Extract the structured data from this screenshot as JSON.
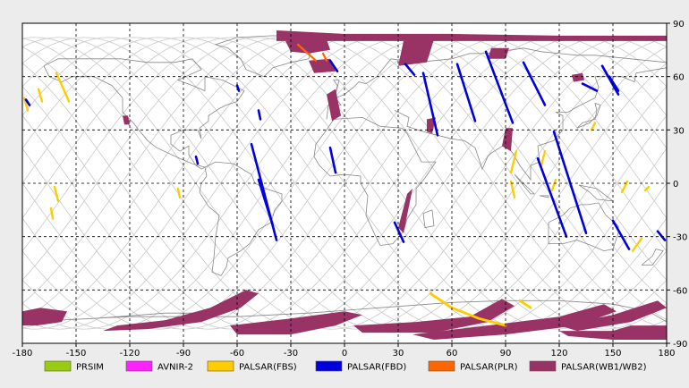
{
  "x_ticks": [
    "-180",
    "-150",
    "-120",
    "-90",
    "-60",
    "-30",
    "0",
    "30",
    "60",
    "90",
    "120",
    "150",
    "180"
  ],
  "y_ticks": [
    "90",
    "60",
    "30",
    "0",
    "-30",
    "-60",
    "-90"
  ],
  "colors": {
    "PRSIM": "#99cc11",
    "AVNIR-2": "#ff22ff",
    "PALSAR(FBS)": "#ffcc00",
    "PALSAR(FBD)": "#0000dd",
    "PALSAR(PLR)": "#ff6600",
    "PALSAR(WB1/WB2)": "#993366",
    "coast": "#888888",
    "orbit": "#c8c8c8",
    "grid": "#000000",
    "background": "#ececec",
    "map": "#ffffff"
  },
  "legend": [
    {
      "label": "PRSIM",
      "color": "#99cc11"
    },
    {
      "label": "AVNIR-2",
      "color": "#ff22ff"
    },
    {
      "label": "PALSAR(FBS)",
      "color": "#ffcc00"
    },
    {
      "label": "PALSAR(FBD)",
      "color": "#0000dd"
    },
    {
      "label": "PALSAR(PLR)",
      "color": "#ff6600"
    },
    {
      "label": "PALSAR(WB1/WB2)",
      "color": "#993366"
    }
  ],
  "map": {
    "lon_range": [
      -180,
      180
    ],
    "lat_range": [
      -90,
      90
    ],
    "graticule_step": 30,
    "orbit_tracks": 13,
    "orbit_inclination_deg": 82
  },
  "coverage": {
    "PALSAR(FBD)": [
      [
        [
          -52,
          22
        ],
        [
          -38,
          -32
        ]
      ],
      [
        [
          -48,
          2
        ],
        [
          -40,
          -24
        ]
      ],
      [
        [
          -83,
          15
        ],
        [
          -82,
          11
        ]
      ],
      [
        [
          -60,
          55
        ],
        [
          -59,
          52
        ]
      ],
      [
        [
          -48,
          41
        ],
        [
          -47,
          36
        ]
      ],
      [
        [
          -8,
          20
        ],
        [
          -5,
          6
        ]
      ],
      [
        [
          44,
          62
        ],
        [
          52,
          27
        ]
      ],
      [
        [
          63,
          67
        ],
        [
          73,
          35
        ]
      ],
      [
        [
          79,
          74
        ],
        [
          94,
          34
        ]
      ],
      [
        [
          100,
          68
        ],
        [
          112,
          44
        ]
      ],
      [
        [
          108,
          14
        ],
        [
          124,
          -30
        ]
      ],
      [
        [
          117,
          29
        ],
        [
          135,
          -28
        ]
      ],
      [
        [
          144,
          66
        ],
        [
          153,
          50
        ]
      ],
      [
        [
          148,
          60
        ],
        [
          153,
          52
        ]
      ],
      [
        [
          133,
          56
        ],
        [
          141,
          52
        ]
      ],
      [
        [
          -178,
          47
        ],
        [
          -176,
          44
        ]
      ],
      [
        [
          -8,
          69
        ],
        [
          -4,
          63
        ]
      ],
      [
        [
          34,
          67
        ],
        [
          39,
          61
        ]
      ],
      [
        [
          28,
          -22
        ],
        [
          33,
          -33
        ]
      ],
      [
        [
          150,
          -21
        ],
        [
          159,
          -37
        ]
      ],
      [
        [
          175,
          -27
        ],
        [
          179,
          -32
        ]
      ]
    ],
    "PALSAR(FBS)": [
      [
        [
          -161,
          62
        ],
        [
          -154,
          46
        ]
      ],
      [
        [
          -179,
          48
        ],
        [
          -177,
          41
        ]
      ],
      [
        [
          -171,
          53
        ],
        [
          -169,
          46
        ]
      ],
      [
        [
          -162,
          -2
        ],
        [
          -160,
          -10
        ]
      ],
      [
        [
          -164,
          -14
        ],
        [
          -163,
          -20
        ]
      ],
      [
        [
          -93,
          -3
        ],
        [
          -92,
          -8
        ]
      ],
      [
        [
          96,
          18
        ],
        [
          93,
          6
        ]
      ],
      [
        [
          112,
          18
        ],
        [
          110,
          10
        ]
      ],
      [
        [
          118,
          2
        ],
        [
          116,
          -4
        ]
      ],
      [
        [
          155,
          -5
        ],
        [
          158,
          1
        ]
      ],
      [
        [
          161,
          -38
        ],
        [
          166,
          -31
        ]
      ],
      [
        [
          168,
          -4
        ],
        [
          170,
          -2
        ]
      ],
      [
        [
          138,
          30
        ],
        [
          140,
          34
        ]
      ],
      [
        [
          93,
          1
        ],
        [
          95,
          -8
        ]
      ]
    ],
    "PALSAR(PLR)": [
      [
        [
          -26,
          78
        ],
        [
          -16,
          69
        ]
      ],
      [
        [
          -12,
          73
        ],
        [
          -10,
          69
        ]
      ]
    ],
    "PALSAR(FBS)_arc": [
      [
        [
          48,
          -62
        ],
        [
          60,
          -70
        ],
        [
          75,
          -76
        ],
        [
          90,
          -80
        ]
      ],
      [
        [
          98,
          -66
        ],
        [
          104,
          -70
        ]
      ]
    ],
    "PALSAR(WB1/WB2)": [
      [
        [
          -38,
          86
        ],
        [
          0,
          84
        ],
        [
          60,
          84
        ],
        [
          120,
          83
        ],
        [
          180,
          83
        ],
        [
          180,
          80
        ],
        [
          120,
          80
        ],
        [
          60,
          80
        ],
        [
          0,
          80
        ],
        [
          -38,
          80
        ]
      ],
      [
        [
          -33,
          80
        ],
        [
          -10,
          81
        ],
        [
          -8,
          75
        ],
        [
          -20,
          73
        ],
        [
          -30,
          74
        ]
      ],
      [
        [
          -10,
          50
        ],
        [
          -5,
          53
        ],
        [
          -2,
          38
        ],
        [
          -7,
          35
        ]
      ],
      [
        [
          -124,
          38
        ],
        [
          -121,
          38
        ],
        [
          -120,
          33
        ],
        [
          -123,
          33
        ]
      ],
      [
        [
          -20,
          69
        ],
        [
          -8,
          70
        ],
        [
          -5,
          63
        ],
        [
          -17,
          62
        ]
      ],
      [
        [
          33,
          80
        ],
        [
          50,
          81
        ],
        [
          46,
          68
        ],
        [
          30,
          66
        ]
      ],
      [
        [
          82,
          76
        ],
        [
          92,
          76
        ],
        [
          90,
          70
        ],
        [
          80,
          70
        ]
      ],
      [
        [
          127,
          61
        ],
        [
          133,
          62
        ],
        [
          134,
          58
        ],
        [
          128,
          57
        ]
      ],
      [
        [
          46,
          36
        ],
        [
          51,
          37
        ],
        [
          49,
          28
        ],
        [
          46,
          29
        ]
      ],
      [
        [
          90,
          31
        ],
        [
          94,
          31
        ],
        [
          93,
          18
        ],
        [
          88,
          21
        ]
      ],
      [
        [
          35,
          -6
        ],
        [
          38,
          -3
        ],
        [
          33,
          -28
        ],
        [
          30,
          -25
        ]
      ],
      [
        [
          -180,
          -72
        ],
        [
          -170,
          -70
        ],
        [
          -155,
          -72
        ],
        [
          -158,
          -78
        ],
        [
          -172,
          -80
        ],
        [
          -180,
          -80
        ]
      ],
      [
        [
          -127,
          -80
        ],
        [
          -100,
          -77
        ],
        [
          -75,
          -70
        ],
        [
          -55,
          -60
        ],
        [
          -48,
          -62
        ],
        [
          -58,
          -70
        ],
        [
          -80,
          -78
        ],
        [
          -110,
          -82
        ],
        [
          -135,
          -83
        ]
      ],
      [
        [
          -64,
          -80
        ],
        [
          -30,
          -76
        ],
        [
          0,
          -72
        ],
        [
          10,
          -74
        ],
        [
          -5,
          -80
        ],
        [
          -30,
          -85
        ],
        [
          -60,
          -85
        ]
      ],
      [
        [
          5,
          -80
        ],
        [
          40,
          -78
        ],
        [
          70,
          -75
        ],
        [
          88,
          -65
        ],
        [
          95,
          -69
        ],
        [
          80,
          -78
        ],
        [
          50,
          -84
        ],
        [
          10,
          -84
        ]
      ],
      [
        [
          38,
          -85
        ],
        [
          80,
          -80
        ],
        [
          120,
          -75
        ],
        [
          145,
          -68
        ],
        [
          152,
          -72
        ],
        [
          130,
          -80
        ],
        [
          90,
          -85
        ],
        [
          50,
          -88
        ]
      ],
      [
        [
          120,
          -80
        ],
        [
          150,
          -74
        ],
        [
          175,
          -66
        ],
        [
          180,
          -70
        ],
        [
          160,
          -78
        ],
        [
          130,
          -83
        ]
      ],
      [
        [
          140,
          -86
        ],
        [
          160,
          -80
        ],
        [
          180,
          -80
        ],
        [
          180,
          -86
        ]
      ],
      [
        [
          120,
          -83
        ],
        [
          160,
          -83
        ],
        [
          180,
          -85
        ],
        [
          180,
          -88
        ],
        [
          150,
          -88
        ],
        [
          125,
          -86
        ]
      ]
    ]
  }
}
